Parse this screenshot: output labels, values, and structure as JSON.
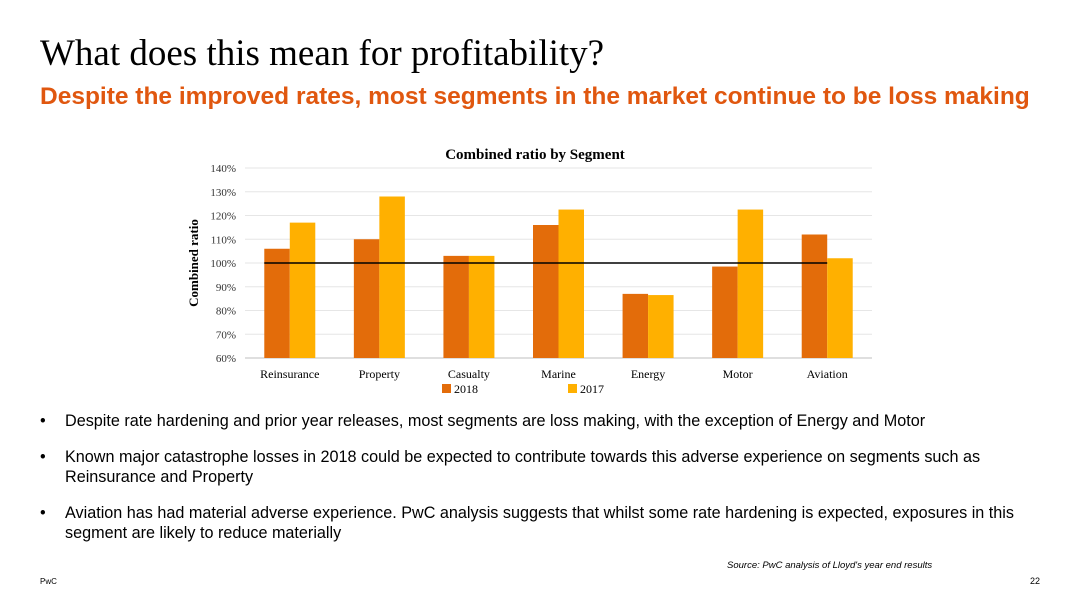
{
  "slide": {
    "title": "What does this mean for profitability?",
    "subtitle": "Despite the improved rates, most segments in the market continue to be loss making",
    "bullets": [
      "Despite rate hardening and prior year releases, most segments are loss making, with the exception of Energy and Motor",
      "Known major catastrophe losses in 2018 could be expected to contribute towards this adverse experience on segments such as Reinsurance and Property",
      "Aviation has had material adverse experience. PwC analysis suggests that whilst some rate hardening is expected, exposures in this segment are likely to reduce materially"
    ],
    "source": "Source: PwC analysis of Lloyd's year end results",
    "footer_brand": "PwC",
    "page_number": "22"
  },
  "chart_data": {
    "type": "bar",
    "title": "Combined ratio by Segment",
    "xlabel": "",
    "ylabel": "Combined ratio",
    "categories": [
      "Reinsurance",
      "Property",
      "Casualty",
      "Marine",
      "Energy",
      "Motor",
      "Aviation"
    ],
    "series": [
      {
        "name": "2018",
        "color": "#e36c0a",
        "values": [
          106,
          110,
          103,
          116,
          87,
          98.5,
          112
        ]
      },
      {
        "name": "2017",
        "color": "#ffb000",
        "values": [
          117,
          128,
          103,
          122.5,
          86.5,
          122.5,
          102
        ]
      }
    ],
    "ylim": [
      60,
      140
    ],
    "yticks": [
      60,
      70,
      80,
      90,
      100,
      110,
      120,
      130,
      140
    ],
    "ytick_labels": [
      "60%",
      "70%",
      "80%",
      "90%",
      "100%",
      "110%",
      "120%",
      "130%",
      "140%"
    ],
    "reference_line": 100,
    "reference_line_color": "#000000",
    "grid": true,
    "legend_position": "bottom"
  }
}
